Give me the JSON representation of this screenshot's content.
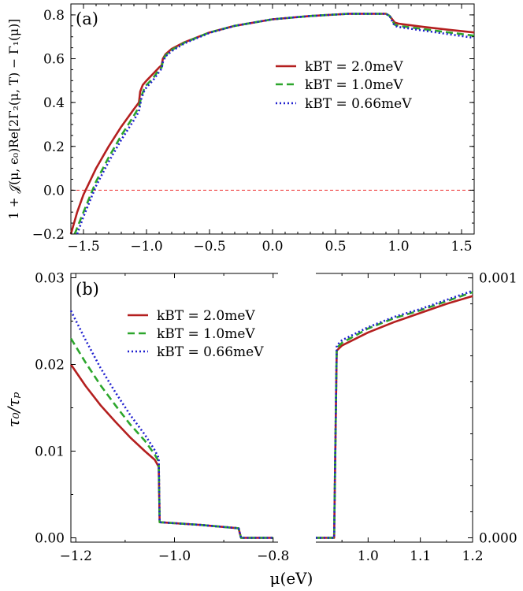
{
  "colors": {
    "red": "#b41f1f",
    "green": "#2ca62c",
    "blue": "#1f1fcf",
    "zero_line": "#ee3333"
  },
  "chart_data": [
    {
      "type": "line",
      "panel_label": "(a)",
      "ylabel": "1 + 𝒥(μ, ϵ₀)Re[2Γ₂(μ, T) − Γ₁(μ)]",
      "xlabel": "",
      "xlim": [
        -1.6,
        1.6
      ],
      "ylim": [
        -0.2,
        0.85
      ],
      "xticks": [
        -1.5,
        -1.0,
        -0.5,
        0.0,
        0.5,
        1.0,
        1.5
      ],
      "xtick_labels": [
        "−1.5",
        "−1.0",
        "−0.5",
        "0.0",
        "0.5",
        "1.0",
        "1.5"
      ],
      "yticks": [
        -0.2,
        0.0,
        0.2,
        0.4,
        0.6,
        0.8
      ],
      "ytick_labels": [
        "−0.2",
        "0.0",
        "0.2",
        "0.4",
        "0.6",
        "0.8"
      ],
      "reference_line": {
        "y": 0.0,
        "style": "dashed"
      },
      "legend_position": "upper-right",
      "series": [
        {
          "name": "k_BT = 2.0meV",
          "legend_label": "kBT = 2.0meV",
          "color_key": "red",
          "dash": "solid",
          "points": [
            [
              -1.6,
              -0.2
            ],
            [
              -1.55,
              -0.1
            ],
            [
              -1.5,
              -0.02
            ],
            [
              -1.45,
              0.04
            ],
            [
              -1.4,
              0.1
            ],
            [
              -1.3,
              0.2
            ],
            [
              -1.2,
              0.29
            ],
            [
              -1.1,
              0.37
            ],
            [
              -1.06,
              0.4
            ],
            [
              -1.05,
              0.45
            ],
            [
              -1.03,
              0.48
            ],
            [
              -1.0,
              0.5
            ],
            [
              -0.95,
              0.53
            ],
            [
              -0.9,
              0.56
            ],
            [
              -0.88,
              0.57
            ],
            [
              -0.87,
              0.6
            ],
            [
              -0.85,
              0.62
            ],
            [
              -0.8,
              0.645
            ],
            [
              -0.7,
              0.675
            ],
            [
              -0.5,
              0.72
            ],
            [
              -0.3,
              0.75
            ],
            [
              0.0,
              0.78
            ],
            [
              0.3,
              0.795
            ],
            [
              0.6,
              0.805
            ],
            [
              0.9,
              0.805
            ],
            [
              0.93,
              0.795
            ],
            [
              0.95,
              0.78
            ],
            [
              0.97,
              0.765
            ],
            [
              1.0,
              0.76
            ],
            [
              1.2,
              0.745
            ],
            [
              1.4,
              0.732
            ],
            [
              1.6,
              0.72
            ]
          ]
        },
        {
          "name": "k_BT = 1.0meV",
          "legend_label": "kBT = 1.0meV",
          "color_key": "green",
          "dash": "dashed",
          "points": [
            [
              -1.57,
              -0.2
            ],
            [
              -1.5,
              -0.1
            ],
            [
              -1.45,
              -0.03
            ],
            [
              -1.4,
              0.04
            ],
            [
              -1.3,
              0.15
            ],
            [
              -1.2,
              0.25
            ],
            [
              -1.1,
              0.34
            ],
            [
              -1.06,
              0.38
            ],
            [
              -1.04,
              0.43
            ],
            [
              -1.02,
              0.46
            ],
            [
              -1.0,
              0.48
            ],
            [
              -0.95,
              0.51
            ],
            [
              -0.9,
              0.55
            ],
            [
              -0.88,
              0.56
            ],
            [
              -0.87,
              0.59
            ],
            [
              -0.85,
              0.615
            ],
            [
              -0.8,
              0.64
            ],
            [
              -0.7,
              0.673
            ],
            [
              -0.5,
              0.72
            ],
            [
              -0.3,
              0.75
            ],
            [
              0.0,
              0.78
            ],
            [
              0.3,
              0.795
            ],
            [
              0.6,
              0.805
            ],
            [
              0.9,
              0.805
            ],
            [
              0.93,
              0.795
            ],
            [
              0.95,
              0.775
            ],
            [
              0.97,
              0.755
            ],
            [
              1.0,
              0.75
            ],
            [
              1.2,
              0.735
            ],
            [
              1.4,
              0.72
            ],
            [
              1.6,
              0.705
            ]
          ]
        },
        {
          "name": "k_BT = 0.66meV",
          "legend_label": "kBT = 0.66meV",
          "color_key": "blue",
          "dash": "dotted",
          "points": [
            [
              -1.55,
              -0.2
            ],
            [
              -1.5,
              -0.12
            ],
            [
              -1.45,
              -0.05
            ],
            [
              -1.4,
              0.02
            ],
            [
              -1.3,
              0.13
            ],
            [
              -1.2,
              0.23
            ],
            [
              -1.1,
              0.32
            ],
            [
              -1.06,
              0.36
            ],
            [
              -1.04,
              0.42
            ],
            [
              -1.02,
              0.45
            ],
            [
              -1.0,
              0.47
            ],
            [
              -0.95,
              0.5
            ],
            [
              -0.9,
              0.54
            ],
            [
              -0.88,
              0.555
            ],
            [
              -0.87,
              0.585
            ],
            [
              -0.85,
              0.61
            ],
            [
              -0.8,
              0.635
            ],
            [
              -0.7,
              0.67
            ],
            [
              -0.5,
              0.718
            ],
            [
              -0.3,
              0.75
            ],
            [
              0.0,
              0.78
            ],
            [
              0.3,
              0.795
            ],
            [
              0.6,
              0.805
            ],
            [
              0.9,
              0.805
            ],
            [
              0.93,
              0.795
            ],
            [
              0.95,
              0.77
            ],
            [
              0.97,
              0.75
            ],
            [
              1.0,
              0.745
            ],
            [
              1.2,
              0.728
            ],
            [
              1.4,
              0.712
            ],
            [
              1.6,
              0.695
            ]
          ]
        }
      ]
    },
    {
      "type": "line",
      "panel_label": "(b)",
      "ylabel": "τ₀/τₚ",
      "xlabel": "μ(eV)",
      "legend_position": "upper-left",
      "left_segment": {
        "xlim": [
          -1.21,
          -0.79
        ],
        "ylim": [
          -0.0005,
          0.0305
        ],
        "xticks": [
          -1.2,
          -1.0,
          -0.8
        ],
        "xtick_labels": [
          "−1.2",
          "−1.0",
          "−0.8"
        ],
        "minor_xticks": [
          -1.1,
          -0.9
        ],
        "yticks": [
          0.0,
          0.01,
          0.02,
          0.03
        ],
        "ytick_labels": [
          "0.00",
          "0.01",
          "0.02",
          "0.03"
        ]
      },
      "right_segment": {
        "xlim": [
          0.9,
          1.2
        ],
        "ylim": [
          -1.67e-05,
          0.001017
        ],
        "xticks": [
          1.0,
          1.1,
          1.2
        ],
        "xtick_labels": [
          "1.0",
          "1.1",
          "1.2"
        ],
        "minor_xticks": [
          0.95,
          1.05,
          1.15
        ],
        "yticks": [
          0.0,
          0.001
        ],
        "ytick_labels": [
          "0.000",
          "0.001"
        ]
      },
      "series": [
        {
          "name": "k_BT = 2.0meV",
          "legend_label": "kBT = 2.0meV",
          "color_key": "red",
          "dash": "solid",
          "left_points": [
            [
              -1.21,
              0.02
            ],
            [
              -1.18,
              0.0175
            ],
            [
              -1.15,
              0.0153
            ],
            [
              -1.12,
              0.0134
            ],
            [
              -1.09,
              0.0116
            ],
            [
              -1.06,
              0.01
            ],
            [
              -1.04,
              0.009
            ],
            [
              -1.032,
              0.0082
            ],
            [
              -1.03,
              0.0018
            ],
            [
              -0.95,
              0.0015
            ],
            [
              -0.87,
              0.0011
            ],
            [
              -0.865,
              0.0
            ],
            [
              -0.8,
              0.0
            ]
          ],
          "right_points": [
            [
              0.9,
              0.0
            ],
            [
              0.935,
              0.0
            ],
            [
              0.94,
              0.00072
            ],
            [
              0.95,
              0.00074
            ],
            [
              1.0,
              0.00079
            ],
            [
              1.05,
              0.00083
            ],
            [
              1.1,
              0.000865
            ],
            [
              1.15,
              0.0009
            ],
            [
              1.2,
              0.00093
            ]
          ]
        },
        {
          "name": "k_BT = 1.0meV",
          "legend_label": "kBT = 1.0meV",
          "color_key": "green",
          "dash": "dashed",
          "left_points": [
            [
              -1.21,
              0.023
            ],
            [
              -1.18,
              0.0202
            ],
            [
              -1.15,
              0.0176
            ],
            [
              -1.12,
              0.0153
            ],
            [
              -1.09,
              0.0131
            ],
            [
              -1.06,
              0.0112
            ],
            [
              -1.04,
              0.0096
            ],
            [
              -1.032,
              0.0088
            ],
            [
              -1.03,
              0.0018
            ],
            [
              -0.95,
              0.0015
            ],
            [
              -0.87,
              0.0011
            ],
            [
              -0.865,
              0.0
            ],
            [
              -0.8,
              0.0
            ]
          ],
          "right_points": [
            [
              0.9,
              0.0
            ],
            [
              0.935,
              0.0
            ],
            [
              0.94,
              0.00073
            ],
            [
              0.95,
              0.00075
            ],
            [
              1.0,
              0.000805
            ],
            [
              1.05,
              0.000845
            ],
            [
              1.1,
              0.000875
            ],
            [
              1.15,
              0.00091
            ],
            [
              1.2,
              0.000945
            ]
          ]
        },
        {
          "name": "k_BT = 0.66meV",
          "legend_label": "kBT = 0.66meV",
          "color_key": "blue",
          "dash": "dotted",
          "left_points": [
            [
              -1.21,
              0.0262
            ],
            [
              -1.18,
              0.0228
            ],
            [
              -1.15,
              0.0196
            ],
            [
              -1.12,
              0.0168
            ],
            [
              -1.09,
              0.0142
            ],
            [
              -1.06,
              0.0119
            ],
            [
              -1.04,
              0.0101
            ],
            [
              -1.032,
              0.0092
            ],
            [
              -1.03,
              0.0018
            ],
            [
              -0.95,
              0.0015
            ],
            [
              -0.87,
              0.0011
            ],
            [
              -0.865,
              0.0
            ],
            [
              -0.8,
              0.0
            ]
          ],
          "right_points": [
            [
              0.9,
              0.0
            ],
            [
              0.935,
              0.0
            ],
            [
              0.94,
              0.00074
            ],
            [
              0.95,
              0.00076
            ],
            [
              1.0,
              0.00081
            ],
            [
              1.05,
              0.00085
            ],
            [
              1.1,
              0.00088
            ],
            [
              1.15,
              0.000915
            ],
            [
              1.2,
              0.00095
            ]
          ]
        }
      ]
    }
  ]
}
